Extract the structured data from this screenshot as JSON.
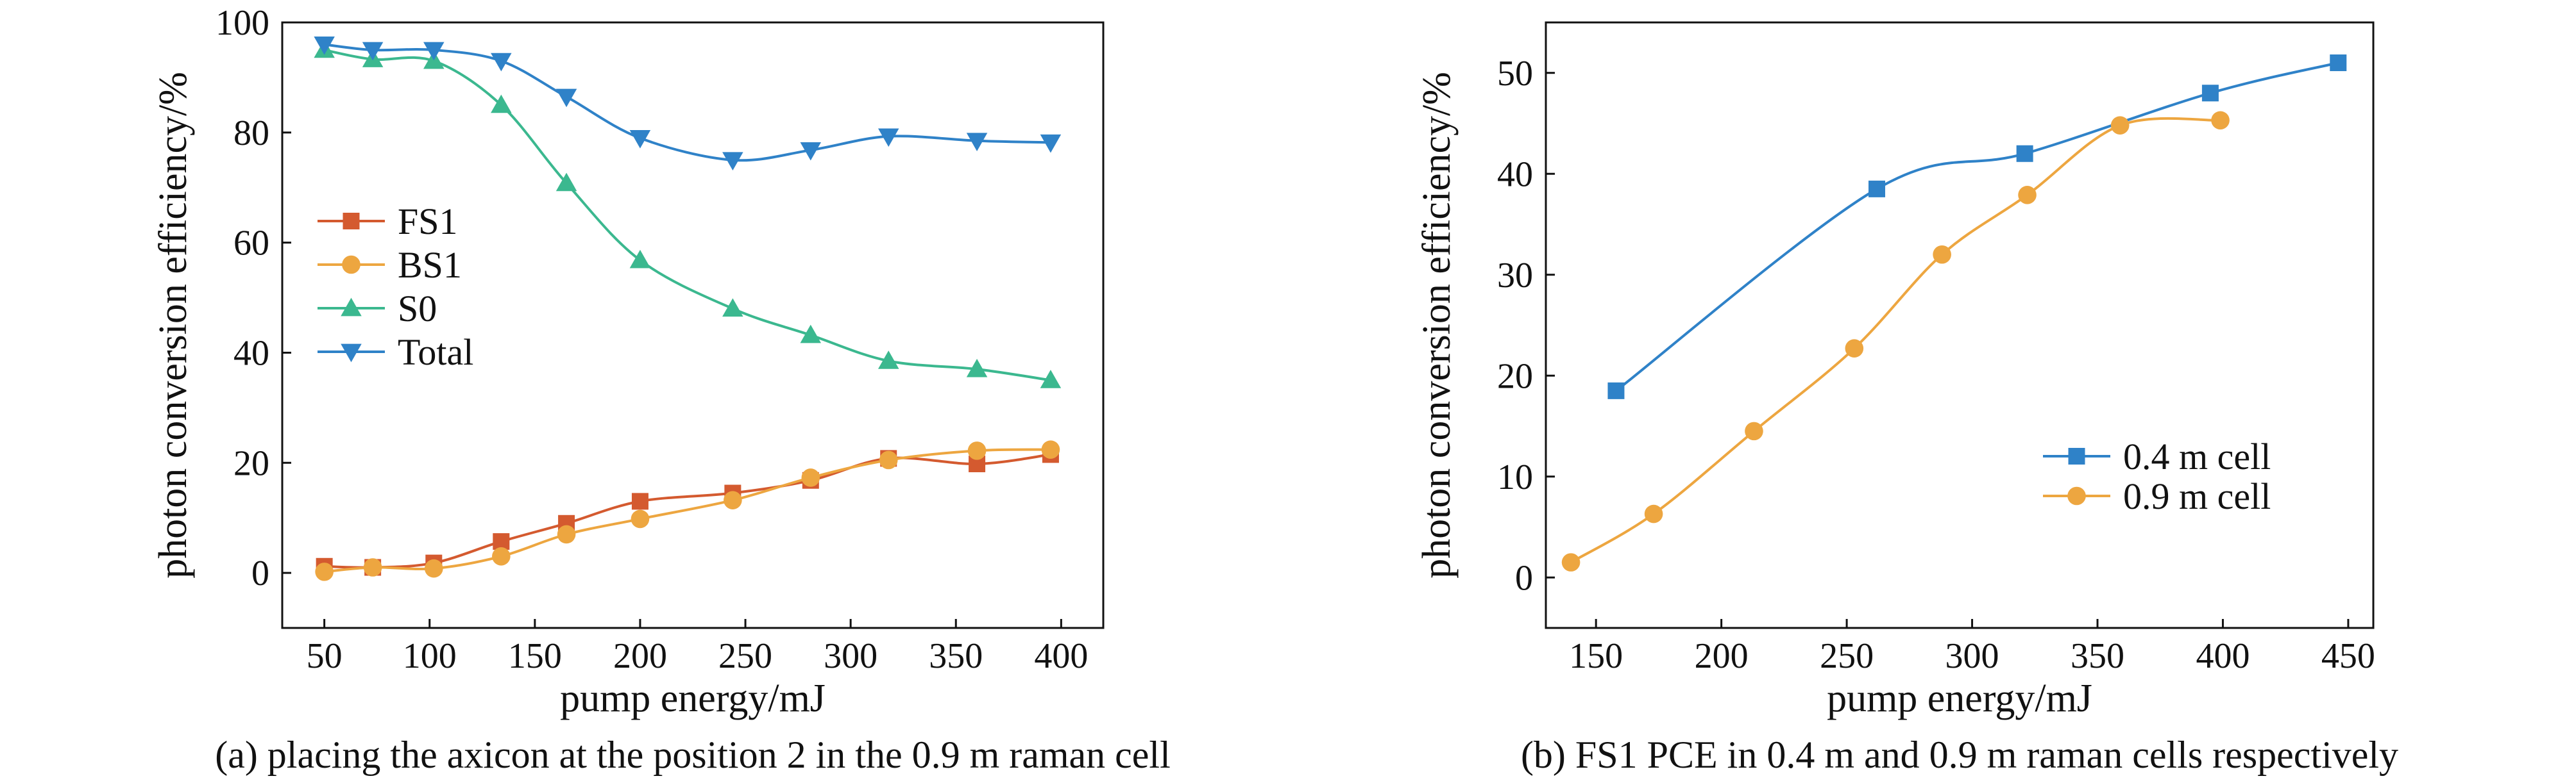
{
  "chart_data": [
    {
      "type": "line",
      "xlabel": "pump energy/mJ",
      "ylabel": "photon conversion efficiency/%",
      "caption": "(a) placing the axicon at the position 2 in the 0.9 m raman cell",
      "xlim": [
        30,
        420
      ],
      "ylim": [
        -10,
        100
      ],
      "xticks": [
        50,
        100,
        150,
        200,
        250,
        300,
        350,
        400
      ],
      "yticks": [
        0,
        20,
        40,
        60,
        80,
        100
      ],
      "grid": false,
      "legend_position": "left",
      "x": [
        50,
        73,
        102,
        134,
        165,
        200,
        244,
        281,
        318,
        360,
        395
      ],
      "series": [
        {
          "name": "FS1",
          "color": "#d45a2f",
          "marker": "square",
          "values": [
            1.2,
            1.0,
            1.8,
            5.7,
            9.0,
            13.0,
            14.5,
            16.8,
            20.8,
            19.8,
            21.5
          ]
        },
        {
          "name": "BS1",
          "color": "#eda640",
          "marker": "circle",
          "values": [
            0.2,
            1.0,
            0.8,
            3.0,
            7.0,
            9.8,
            13.2,
            17.3,
            20.5,
            22.2,
            22.4
          ]
        },
        {
          "name": "S0",
          "color": "#3bb88f",
          "marker": "triangle-up",
          "values": [
            95.0,
            93.3,
            93.0,
            85.0,
            70.8,
            56.8,
            48.0,
            43.2,
            38.5,
            37.0,
            35.0
          ]
        },
        {
          "name": "Total",
          "color": "#2f82c8",
          "marker": "triangle-down",
          "values": [
            96.0,
            95.0,
            95.0,
            93.0,
            86.5,
            79.0,
            75.0,
            76.8,
            79.3,
            78.5,
            78.2
          ]
        }
      ]
    },
    {
      "type": "line",
      "xlabel": "pump energy/mJ",
      "ylabel": "photon conversion efficiency/%",
      "caption": "(b) FS1 PCE in 0.4 m and 0.9 m raman cells respectively",
      "xlim": [
        130,
        460
      ],
      "ylim": [
        -5,
        55
      ],
      "xticks": [
        150,
        200,
        250,
        300,
        350,
        400,
        450
      ],
      "yticks": [
        0,
        10,
        20,
        30,
        40,
        50
      ],
      "grid": false,
      "legend_position": "bottom-right",
      "series": [
        {
          "name": "0.4 m cell",
          "color": "#2f82c8",
          "marker": "square",
          "x": [
            158,
            262,
            321,
            395,
            446
          ],
          "values": [
            18.5,
            38.5,
            42.0,
            48.0,
            51.0
          ]
        },
        {
          "name": "0.9 m cell",
          "color": "#eda640",
          "marker": "circle",
          "x": [
            140,
            173,
            213,
            253,
            288,
            322,
            359,
            399
          ],
          "values": [
            1.5,
            6.3,
            14.5,
            22.7,
            32.0,
            37.9,
            44.8,
            45.3
          ]
        }
      ]
    }
  ]
}
